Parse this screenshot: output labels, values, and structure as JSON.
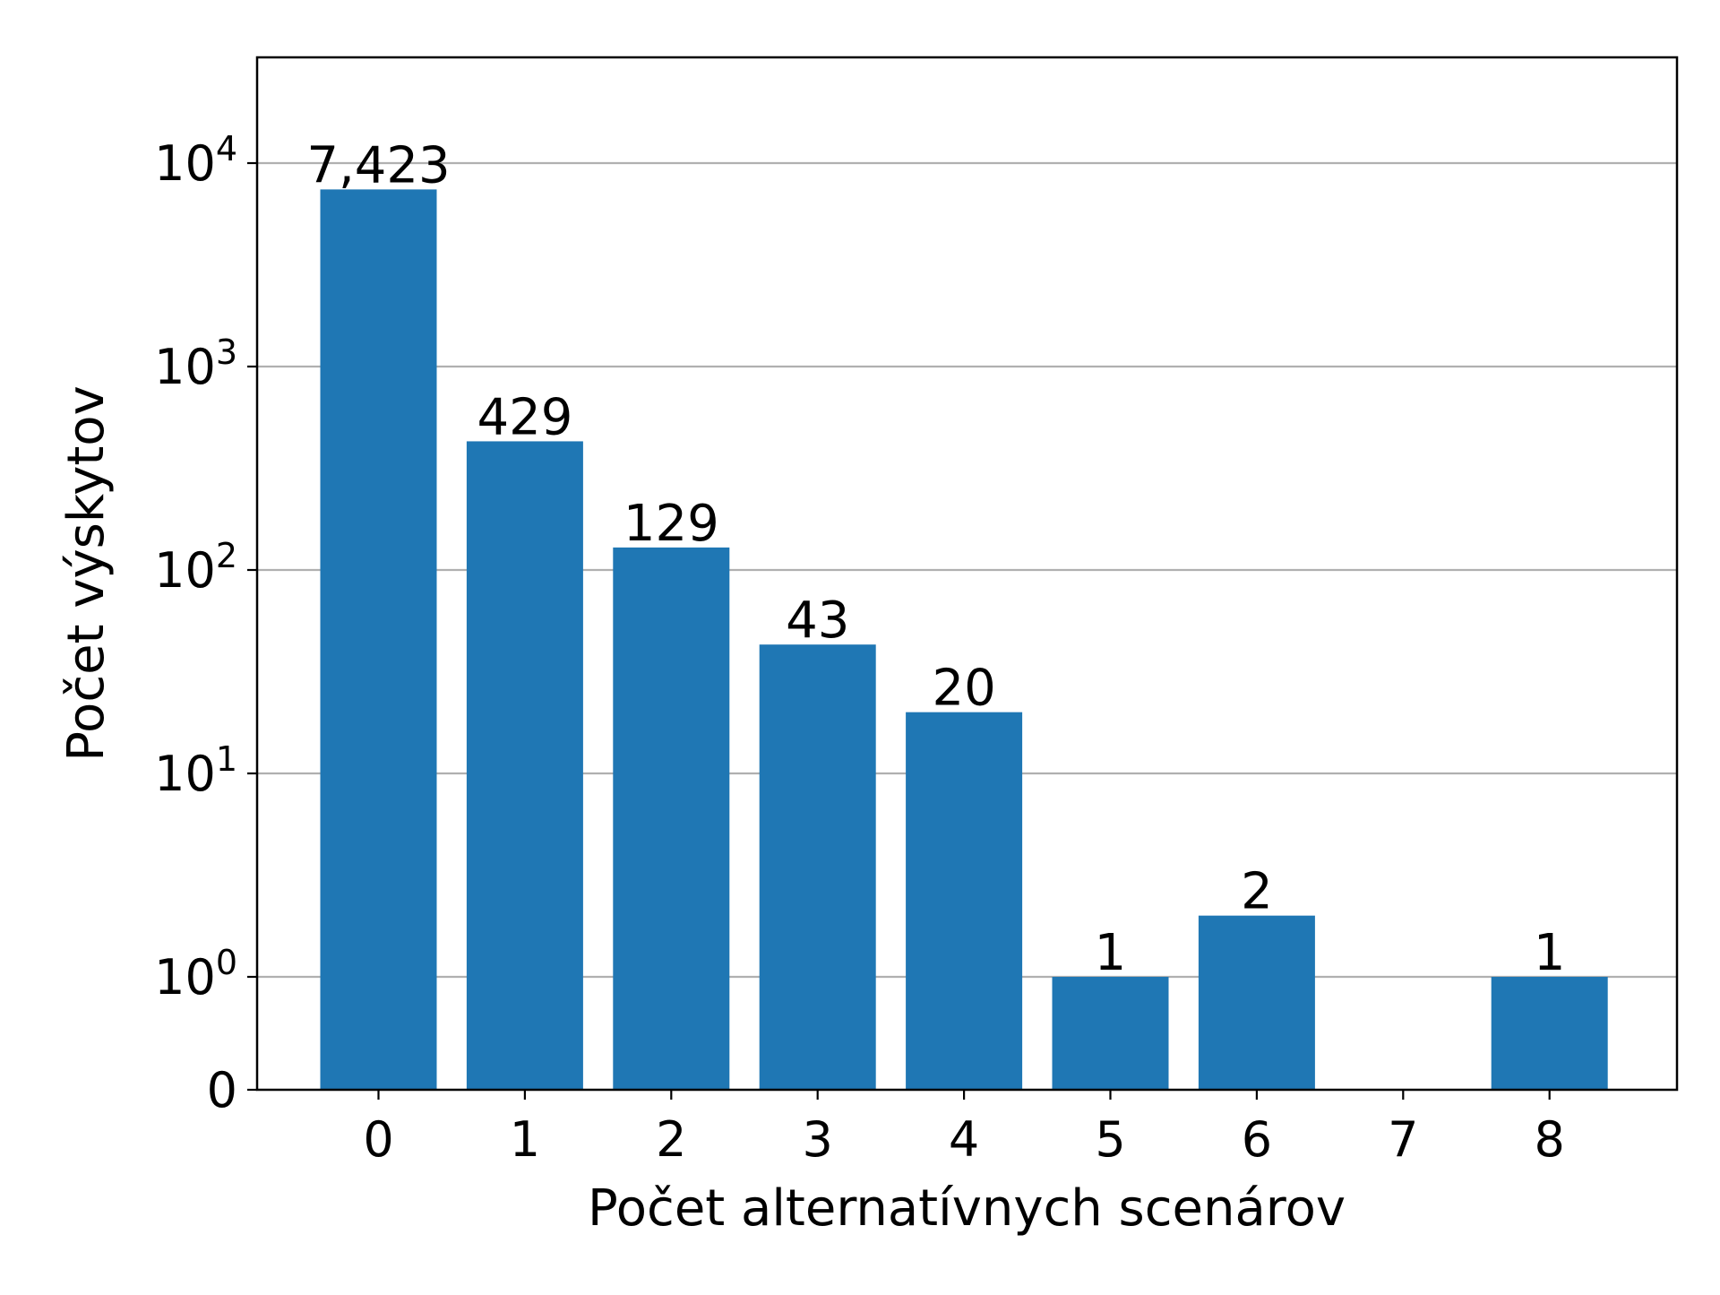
{
  "chart_data": {
    "type": "bar",
    "xlabel": "Počet alternatívnych scenárov",
    "ylabel": "Počet výskytov",
    "y_scale": "symlog",
    "grid": "y",
    "bar_color": "#1f77b4",
    "categories": [
      "0",
      "1",
      "2",
      "3",
      "4",
      "5",
      "6",
      "7",
      "8"
    ],
    "values": [
      7423,
      429,
      129,
      43,
      20,
      1,
      2,
      0,
      1
    ],
    "data_labels": [
      "7,423",
      "429",
      "129",
      "43",
      "20",
      "1",
      "2",
      "",
      "1"
    ],
    "x_ticks": [
      "0",
      "1",
      "2",
      "3",
      "4",
      "5",
      "6",
      "7",
      "8"
    ],
    "y_ticks": [
      {
        "value": 0,
        "base": "0",
        "exp": ""
      },
      {
        "value": 1,
        "base": "10",
        "exp": "0"
      },
      {
        "value": 10,
        "base": "10",
        "exp": "1"
      },
      {
        "value": 100,
        "base": "10",
        "exp": "2"
      },
      {
        "value": 1000,
        "base": "10",
        "exp": "3"
      },
      {
        "value": 10000,
        "base": "10",
        "exp": "4"
      }
    ],
    "ylim": [
      0,
      20000
    ]
  }
}
